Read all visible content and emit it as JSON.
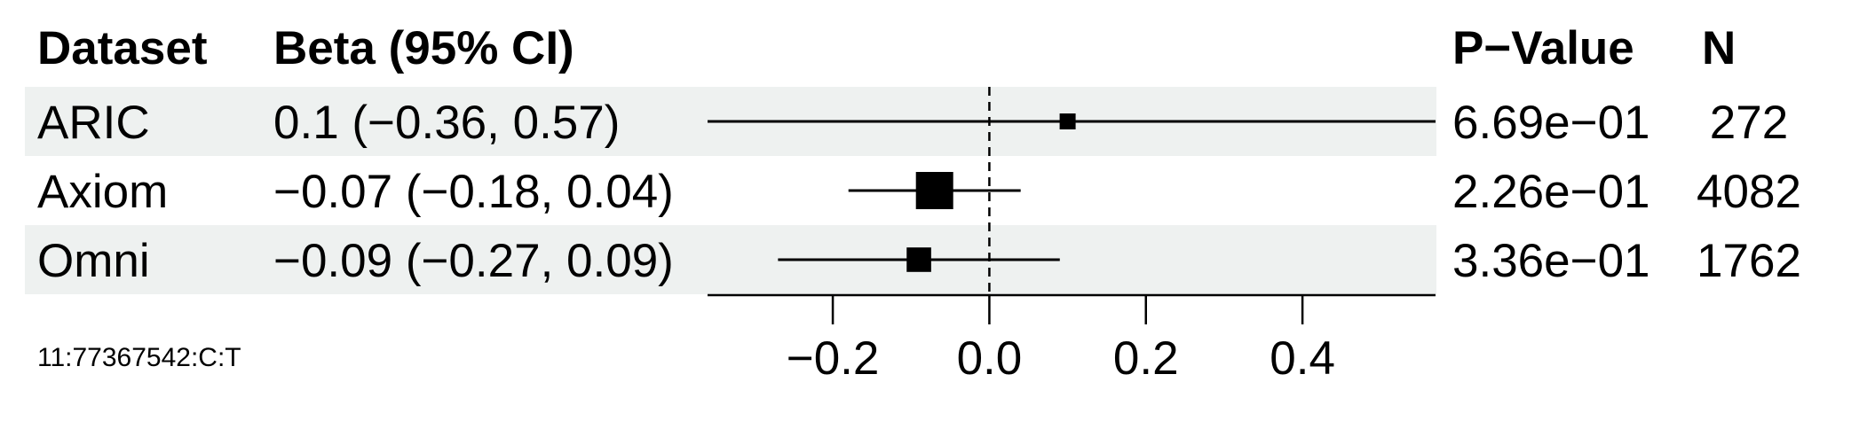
{
  "chart_data": {
    "type": "forest",
    "headers": {
      "dataset": "Dataset",
      "beta": "Beta (95% CI)",
      "pvalue": "P−Value",
      "n": "N"
    },
    "rows": [
      {
        "dataset": "ARIC",
        "beta": 0.1,
        "lo": -0.36,
        "hi": 0.57,
        "beta_label": "0.1 (−0.36, 0.57)",
        "pvalue": "6.69e−01",
        "n": "272",
        "shaded": true
      },
      {
        "dataset": "Axiom",
        "beta": -0.07,
        "lo": -0.18,
        "hi": 0.04,
        "beta_label": "−0.07 (−0.18, 0.04)",
        "pvalue": "2.26e−01",
        "n": "4082",
        "shaded": false
      },
      {
        "dataset": "Omni",
        "beta": -0.09,
        "lo": -0.27,
        "hi": 0.09,
        "beta_label": "−0.09 (−0.27, 0.09)",
        "pvalue": "3.36e−01",
        "n": "1762",
        "shaded": true
      }
    ],
    "xaxis": {
      "ticks": [
        -0.2,
        0.0,
        0.2,
        0.4
      ],
      "tick_labels": [
        "−0.2",
        "0.0",
        "0.2",
        "0.4"
      ],
      "range": [
        -0.36,
        0.57
      ]
    },
    "reference_line": 0,
    "footnote": "11:77367542:C:T",
    "colors": {
      "row_shade": "#eef1f0",
      "ink": "#000000"
    }
  }
}
